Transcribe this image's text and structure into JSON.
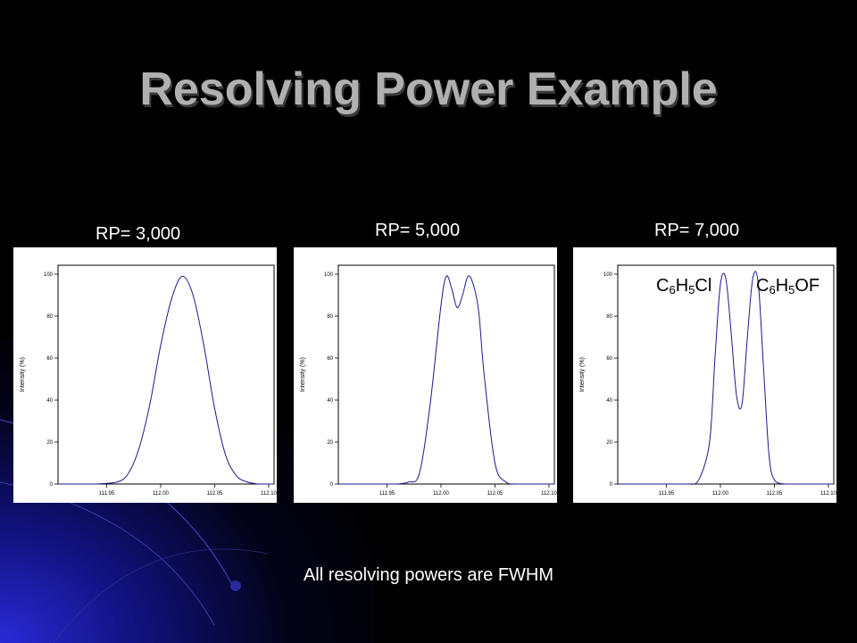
{
  "slide": {
    "title": "Resolving Power Example",
    "footnote": "All resolving powers are FWHM"
  },
  "species": {
    "left": {
      "c": "C",
      "n1": "6",
      "h": "H",
      "n2": "5",
      "rest": "Cl"
    },
    "right": {
      "c": "C",
      "n1": "6",
      "h": "H",
      "n2": "5",
      "rest": "OF"
    }
  },
  "chart_data": [
    {
      "type": "line",
      "title": "RP= 3,000",
      "ylabel": "Intensity (%)",
      "xlim": [
        111.905,
        112.105
      ],
      "ylim": [
        0,
        100
      ],
      "x_ticks": [
        "111.95",
        "112.00",
        "112.05",
        "112.10"
      ],
      "y_ticks": [
        "0",
        "20",
        "40",
        "60",
        "80",
        "100"
      ],
      "series": [
        {
          "x": [
            111.94,
            111.96,
            111.97,
            111.98,
            111.99,
            112.0,
            112.01,
            112.02,
            112.03,
            112.04,
            112.05,
            112.06,
            112.07,
            112.08,
            112.09
          ],
          "values": [
            0,
            1,
            5,
            17,
            38,
            66,
            88,
            99,
            90,
            66,
            36,
            14,
            4,
            1,
            0
          ]
        }
      ]
    },
    {
      "type": "line",
      "title": "RP= 5,000",
      "ylabel": "Intensity (%)",
      "xlim": [
        111.905,
        112.105
      ],
      "ylim": [
        0,
        100
      ],
      "x_ticks": [
        "111.95",
        "112.00",
        "112.05",
        "112.10"
      ],
      "y_ticks": [
        "0",
        "20",
        "40",
        "60",
        "80",
        "100"
      ],
      "series": [
        {
          "x": [
            111.96,
            111.97,
            111.98,
            111.99,
            112.0,
            112.005,
            112.01,
            112.015,
            112.02,
            112.025,
            112.03,
            112.035,
            112.04,
            112.05,
            112.06,
            112.07
          ],
          "values": [
            0,
            1,
            5,
            38,
            85,
            99,
            93,
            84,
            90,
            99,
            95,
            82,
            52,
            10,
            1,
            0
          ]
        }
      ]
    },
    {
      "type": "line",
      "title": "RP= 7,000",
      "ylabel": "Intensity (%)",
      "xlim": [
        111.905,
        112.105
      ],
      "ylim": [
        0,
        100
      ],
      "x_ticks": [
        "111.95",
        "112.00",
        "112.05",
        "112.10"
      ],
      "y_ticks": [
        "0",
        "20",
        "40",
        "60",
        "80",
        "100"
      ],
      "series": [
        {
          "x": [
            111.97,
            111.98,
            111.99,
            111.995,
            112.0,
            112.005,
            112.01,
            112.015,
            112.02,
            112.025,
            112.03,
            112.035,
            112.04,
            112.045,
            112.05,
            112.06
          ],
          "values": [
            0,
            2,
            20,
            60,
            95,
            98,
            72,
            42,
            38,
            70,
            98,
            96,
            55,
            14,
            2,
            0
          ]
        }
      ]
    }
  ]
}
